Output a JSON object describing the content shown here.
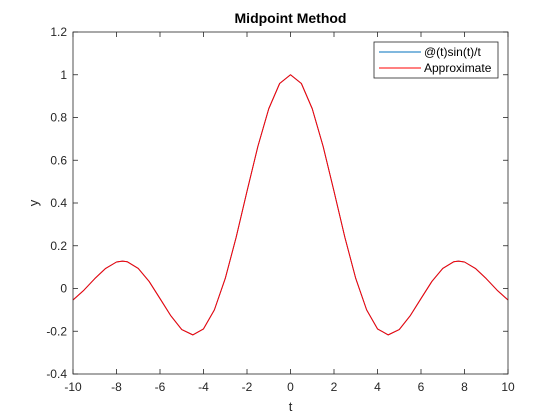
{
  "chart_data": {
    "type": "line",
    "title": "Midpoint Method",
    "xlabel": "t",
    "ylabel": "y",
    "xlim": [
      -10,
      10
    ],
    "ylim": [
      -0.4,
      1.2
    ],
    "xticks": [
      -10,
      -8,
      -6,
      -4,
      -2,
      0,
      2,
      4,
      6,
      8,
      10
    ],
    "yticks": [
      -0.4,
      -0.2,
      0,
      0.2,
      0.4,
      0.6,
      0.8,
      1,
      1.2
    ],
    "grid": false,
    "legend_position": "top-right",
    "series": [
      {
        "name": "@(t)sin(t)/t",
        "color": "#0072BD",
        "x": [
          -10,
          -9.5,
          -9,
          -8.5,
          -8,
          -7.725,
          -7.5,
          -7,
          -6.5,
          -6,
          -5.5,
          -5,
          -4.493,
          -4,
          -3.5,
          -3,
          -2.5,
          -2,
          -1.5,
          -1,
          -0.5,
          0,
          0.5,
          1,
          1.5,
          2,
          2.5,
          3,
          3.5,
          4,
          4.493,
          5,
          5.5,
          6,
          6.5,
          7,
          7.5,
          7.725,
          8,
          8.5,
          9,
          9.5,
          10
        ],
        "y": [
          -0.054,
          -0.008,
          0.046,
          0.094,
          0.124,
          0.128,
          0.125,
          0.094,
          0.033,
          -0.047,
          -0.128,
          -0.192,
          -0.217,
          -0.189,
          -0.1,
          0.047,
          0.239,
          0.455,
          0.665,
          0.841,
          0.959,
          1,
          0.959,
          0.841,
          0.665,
          0.455,
          0.239,
          0.047,
          -0.1,
          -0.189,
          -0.217,
          -0.192,
          -0.128,
          -0.047,
          0.033,
          0.094,
          0.125,
          0.128,
          0.124,
          0.094,
          0.046,
          -0.008,
          -0.054
        ]
      },
      {
        "name": "Approximate",
        "color": "#FF0000",
        "x": [
          -10,
          -9.5,
          -9,
          -8.5,
          -8,
          -7.725,
          -7.5,
          -7,
          -6.5,
          -6,
          -5.5,
          -5,
          -4.493,
          -4,
          -3.5,
          -3,
          -2.5,
          -2,
          -1.5,
          -1,
          -0.5,
          0,
          0.5,
          1,
          1.5,
          2,
          2.5,
          3,
          3.5,
          4,
          4.493,
          5,
          5.5,
          6,
          6.5,
          7,
          7.5,
          7.725,
          8,
          8.5,
          9,
          9.5,
          10
        ],
        "y": [
          -0.054,
          -0.008,
          0.046,
          0.094,
          0.124,
          0.128,
          0.125,
          0.094,
          0.033,
          -0.047,
          -0.128,
          -0.192,
          -0.217,
          -0.189,
          -0.1,
          0.047,
          0.239,
          0.455,
          0.665,
          0.841,
          0.959,
          1,
          0.959,
          0.841,
          0.665,
          0.455,
          0.239,
          0.047,
          -0.1,
          -0.189,
          -0.217,
          -0.192,
          -0.128,
          -0.047,
          0.033,
          0.094,
          0.125,
          0.128,
          0.124,
          0.094,
          0.046,
          -0.008,
          -0.054
        ]
      }
    ]
  }
}
